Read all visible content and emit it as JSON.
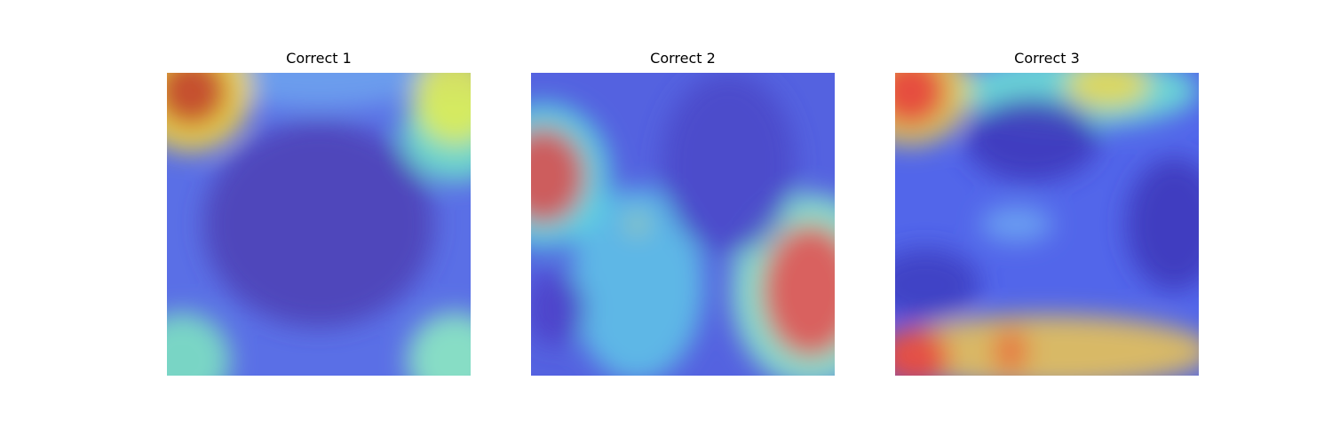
{
  "chart_data": [
    {
      "type": "heatmap",
      "title": "Correct 1",
      "colormap": "jet",
      "base_color": "#5a6fe6",
      "hotspots": [
        {
          "x": 0.08,
          "y": 0.06,
          "rx": 0.12,
          "ry": 0.12,
          "color": "#c0392b"
        },
        {
          "x": 0.08,
          "y": 0.06,
          "rx": 0.2,
          "ry": 0.2,
          "color": "#ffe135"
        },
        {
          "x": 0.95,
          "y": 0.08,
          "rx": 0.14,
          "ry": 0.16,
          "color": "#e8ef4f"
        },
        {
          "x": 0.95,
          "y": 0.2,
          "rx": 0.18,
          "ry": 0.16,
          "color": "#6ee6c8"
        },
        {
          "x": 0.5,
          "y": 0.5,
          "rx": 0.38,
          "ry": 0.34,
          "color": "#4c3fb4"
        },
        {
          "x": 0.05,
          "y": 0.95,
          "rx": 0.16,
          "ry": 0.16,
          "color": "#7fe8c0"
        },
        {
          "x": 0.95,
          "y": 0.95,
          "rx": 0.16,
          "ry": 0.16,
          "color": "#8ef0bf"
        },
        {
          "x": 0.5,
          "y": 0.0,
          "rx": 0.4,
          "ry": 0.12,
          "color": "#6fa4ef"
        }
      ]
    },
    {
      "type": "heatmap",
      "title": "Correct 2",
      "colormap": "jet",
      "base_color": "#5462e0",
      "hotspots": [
        {
          "x": 0.04,
          "y": 0.34,
          "rx": 0.14,
          "ry": 0.16,
          "color": "#e04848"
        },
        {
          "x": 0.04,
          "y": 0.34,
          "rx": 0.22,
          "ry": 0.24,
          "color": "#5ee3df"
        },
        {
          "x": 0.92,
          "y": 0.72,
          "rx": 0.16,
          "ry": 0.22,
          "color": "#e84c4c"
        },
        {
          "x": 0.92,
          "y": 0.72,
          "rx": 0.26,
          "ry": 0.32,
          "color": "#8ef0c8"
        },
        {
          "x": 0.35,
          "y": 0.7,
          "rx": 0.22,
          "ry": 0.32,
          "color": "#5fc6e8"
        },
        {
          "x": 0.08,
          "y": 0.78,
          "rx": 0.1,
          "ry": 0.12,
          "color": "#4c40c8"
        },
        {
          "x": 0.65,
          "y": 0.3,
          "rx": 0.22,
          "ry": 0.3,
          "color": "#4a48c8"
        },
        {
          "x": 0.35,
          "y": 0.5,
          "rx": 0.03,
          "ry": 0.03,
          "color": "#b7d37b"
        }
      ]
    },
    {
      "type": "heatmap",
      "title": "Correct 3",
      "colormap": "jet",
      "base_color": "#5266ea",
      "hotspots": [
        {
          "x": 0.05,
          "y": 0.06,
          "rx": 0.12,
          "ry": 0.12,
          "color": "#e83a3a"
        },
        {
          "x": 0.05,
          "y": 0.06,
          "rx": 0.2,
          "ry": 0.18,
          "color": "#f0d84a"
        },
        {
          "x": 0.6,
          "y": 0.06,
          "rx": 0.4,
          "ry": 0.12,
          "color": "#6ee6d4"
        },
        {
          "x": 0.7,
          "y": 0.04,
          "rx": 0.14,
          "ry": 0.08,
          "color": "#f0d84a"
        },
        {
          "x": 0.5,
          "y": 0.92,
          "rx": 0.55,
          "ry": 0.12,
          "color": "#f0c850"
        },
        {
          "x": 0.06,
          "y": 0.94,
          "rx": 0.12,
          "ry": 0.1,
          "color": "#e84040"
        },
        {
          "x": 0.38,
          "y": 0.92,
          "rx": 0.06,
          "ry": 0.08,
          "color": "#e86f40"
        },
        {
          "x": 0.45,
          "y": 0.22,
          "rx": 0.22,
          "ry": 0.14,
          "color": "#3c36b8"
        },
        {
          "x": 0.92,
          "y": 0.5,
          "rx": 0.16,
          "ry": 0.22,
          "color": "#3c36b8"
        },
        {
          "x": 0.1,
          "y": 0.7,
          "rx": 0.18,
          "ry": 0.12,
          "color": "#3c3cc0"
        },
        {
          "x": 0.4,
          "y": 0.5,
          "rx": 0.12,
          "ry": 0.06,
          "color": "#6fa8f2"
        }
      ]
    }
  ]
}
